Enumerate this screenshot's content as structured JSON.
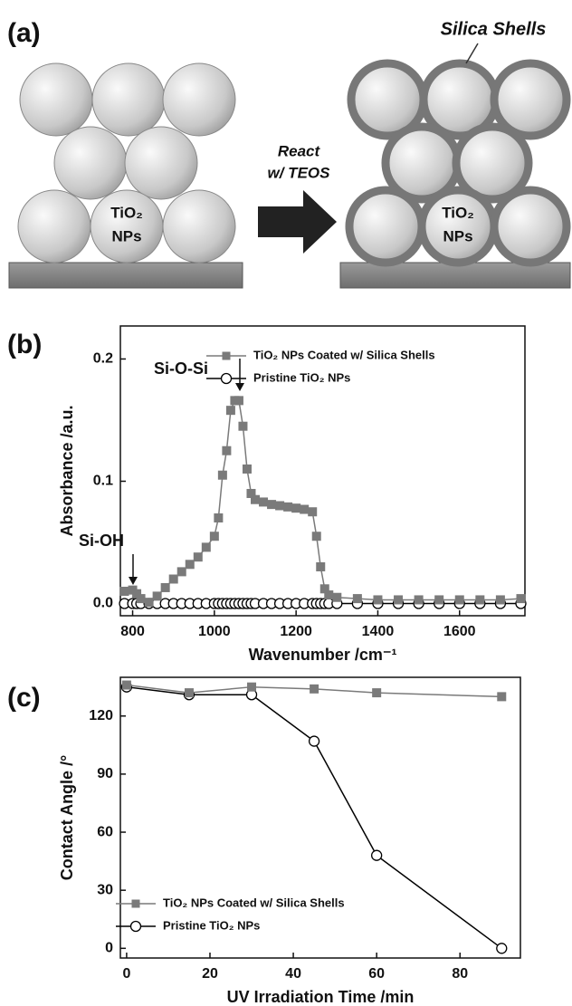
{
  "panel_a": {
    "panel_label": "(a)",
    "shell_label": "Silica Shells",
    "arrow_label_1": "React",
    "arrow_label_2": "w/ TEOS",
    "np_label_left": [
      "TiO₂",
      "NPs"
    ],
    "np_label_right": [
      "TiO₂",
      "NPs"
    ]
  },
  "chart_data": [
    {
      "type": "line",
      "panel_label": "(b)",
      "xlabel": "Wavenumber /cm⁻¹",
      "ylabel": "Absorbance /a.u.",
      "annotations": [
        "Si-O-Si",
        "Si-OH"
      ],
      "x": [
        780,
        800,
        810,
        820,
        840,
        860,
        880,
        900,
        920,
        940,
        960,
        980,
        1000,
        1010,
        1020,
        1030,
        1040,
        1050,
        1060,
        1070,
        1080,
        1090,
        1100,
        1120,
        1140,
        1160,
        1180,
        1200,
        1220,
        1240,
        1250,
        1260,
        1270,
        1280,
        1300,
        1350,
        1400,
        1450,
        1500,
        1550,
        1600,
        1650,
        1700,
        1750
      ],
      "series": [
        {
          "name": "TiO₂ NPs Coated w/ Silica Shells",
          "color": "#7a7a7a",
          "marker": "square",
          "values": [
            0.01,
            0.011,
            0.008,
            0.004,
            0.001,
            0.006,
            0.013,
            0.02,
            0.026,
            0.032,
            0.038,
            0.046,
            0.055,
            0.07,
            0.105,
            0.125,
            0.158,
            0.166,
            0.166,
            0.145,
            0.11,
            0.09,
            0.085,
            0.083,
            0.081,
            0.08,
            0.079,
            0.078,
            0.077,
            0.075,
            0.055,
            0.03,
            0.012,
            0.007,
            0.005,
            0.004,
            0.003,
            0.003,
            0.003,
            0.003,
            0.003,
            0.003,
            0.003,
            0.004
          ]
        },
        {
          "name": "Pristine TiO₂ NPs",
          "color": "#000000",
          "marker": "circle",
          "values": [
            0,
            0,
            0,
            0,
            0,
            0,
            0,
            0,
            0,
            0,
            0,
            0,
            0,
            0,
            0,
            0,
            0,
            0,
            0,
            0,
            0,
            0,
            0,
            0,
            0,
            0,
            0,
            0,
            0,
            0,
            0,
            0,
            0,
            0,
            0,
            0,
            0,
            0,
            0,
            0,
            0,
            0,
            0,
            0
          ]
        }
      ],
      "xlim": [
        770,
        1760
      ],
      "xticks": [
        800,
        1000,
        1200,
        1400,
        1600
      ],
      "ylim": [
        -0.01,
        0.227
      ],
      "yticks": [
        {
          "value": 0,
          "label": "0.0"
        },
        0.1,
        0.2
      ]
    },
    {
      "type": "line",
      "panel_label": "(c)",
      "xlabel": "UV Irradiation Time /min",
      "ylabel": "Contact Angle /°",
      "x": [
        0,
        15,
        30,
        45,
        60,
        90
      ],
      "series": [
        {
          "name": "TiO₂ NPs Coated w/ Silica Shells",
          "color": "#7a7a7a",
          "marker": "square",
          "values": [
            136,
            132,
            135,
            134,
            132,
            130
          ]
        },
        {
          "name": "Pristine TiO₂ NPs",
          "color": "#000000",
          "marker": "circle",
          "values": [
            135,
            131,
            131,
            107,
            48,
            0
          ]
        }
      ],
      "xlim": [
        -1.5,
        94.5
      ],
      "xticks": [
        0,
        20,
        40,
        60,
        80
      ],
      "ylim": [
        -5,
        140
      ],
      "yticks": [
        0,
        30,
        60,
        90,
        120
      ]
    }
  ]
}
